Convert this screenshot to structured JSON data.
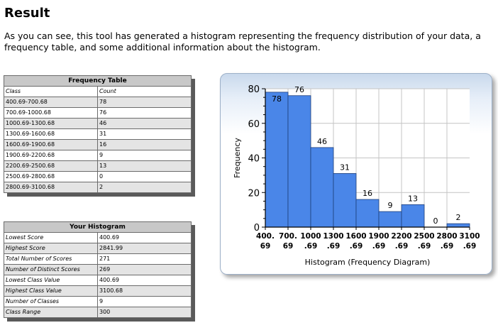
{
  "header": {
    "title": "Result",
    "intro_line1": "As you can see, this tool has generated a histogram representing the frequency distribution of your data, a",
    "intro_line2": "frequency table, and some additional information about the histogram."
  },
  "frequency_table": {
    "title": "Frequency Table",
    "col_class": "Class",
    "col_count": "Count",
    "rows": [
      {
        "class": "400.69-700.68",
        "count": "78"
      },
      {
        "class": "700.69-1000.68",
        "count": "76"
      },
      {
        "class": "1000.69-1300.68",
        "count": "46"
      },
      {
        "class": "1300.69-1600.68",
        "count": "31"
      },
      {
        "class": "1600.69-1900.68",
        "count": "16"
      },
      {
        "class": "1900.69-2200.68",
        "count": "9"
      },
      {
        "class": "2200.69-2500.68",
        "count": "13"
      },
      {
        "class": "2500.69-2800.68",
        "count": "0"
      },
      {
        "class": "2800.69-3100.68",
        "count": "2"
      }
    ]
  },
  "histogram_table": {
    "title": "Your Histogram",
    "rows": [
      {
        "label": "Lowest Score",
        "value": "400.69"
      },
      {
        "label": "Highest Score",
        "value": "2841.99"
      },
      {
        "label": "Total Number of Scores",
        "value": "271"
      },
      {
        "label": "Number of Distinct Scores",
        "value": "269"
      },
      {
        "label": "Lowest Class Value",
        "value": "400.69"
      },
      {
        "label": "Highest Class Value",
        "value": "3100.68"
      },
      {
        "label": "Number of Classes",
        "value": "9"
      },
      {
        "label": "Class Range",
        "value": "300"
      }
    ]
  },
  "chart_data": {
    "type": "bar",
    "title": "",
    "xlabel": "Histogram (Frequency Diagram)",
    "ylabel": "Frequency",
    "ylim": [
      0,
      80
    ],
    "yticks": [
      0,
      20,
      40,
      60,
      80
    ],
    "categories": [
      "400.69-700.68",
      "700.69-1000.68",
      "1000.69-1300.68",
      "1300.69-1600.68",
      "1600.69-1900.68",
      "1900.69-2200.68",
      "2200.69-2500.68",
      "2500.69-2800.68",
      "2800.69-3100.68"
    ],
    "values": [
      78,
      76,
      46,
      31,
      16,
      9,
      13,
      0,
      2
    ],
    "xtick_top": [
      "400.",
      "700.",
      "1000",
      "1300",
      "1600",
      "1900",
      "2200",
      "2500",
      "2800",
      "3100"
    ],
    "xtick_bottom": [
      "69",
      "69",
      ".69",
      ".69",
      ".69",
      ".69",
      ".69",
      ".69",
      ".69",
      ".69"
    ],
    "bar_color": "#4a86e8",
    "grid": true,
    "legend": "none"
  }
}
